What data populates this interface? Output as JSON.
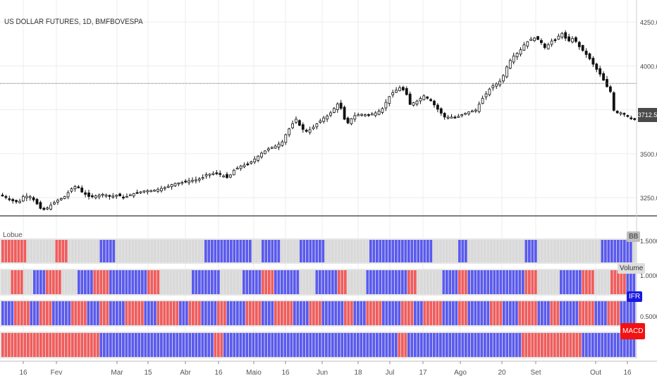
{
  "title": "US DOLLAR FUTURES, 1D, BMFBOVESPA",
  "last_price": "3712.5",
  "indicator_name": "Lobue",
  "row_labels": [
    "BB",
    "Volume",
    "IFR",
    "MACD"
  ],
  "colors": {
    "bull": "#5a5aef",
    "bear": "#f25c5c",
    "neutral": "#d9d9d9",
    "candle": "#111111",
    "grid": "#ececec",
    "axis": "#555555"
  },
  "chart_data": [
    {
      "type": "candlestick",
      "title": "US DOLLAR FUTURES, 1D, BMFBOVESPA",
      "ylim": [
        3150,
        4375
      ],
      "y_ticks": [
        "4250.0",
        "4000.0",
        "3750.0",
        "3500.0",
        "3250.0"
      ],
      "y_tick_values": [
        4250,
        4000,
        3750,
        3500,
        3250
      ],
      "reference_line": 3900,
      "last_price": 3712.5,
      "x_ticks": [
        "16",
        "Fev",
        "Mar",
        "15",
        "Abr",
        "16",
        "Maio",
        "16",
        "Jun",
        "18",
        "Jul",
        "17",
        "Ago",
        "20",
        "Set",
        "Out",
        "16"
      ],
      "close_path": [
        [
          0,
          3265
        ],
        [
          10,
          3245
        ],
        [
          20,
          3225
        ],
        [
          27,
          3230
        ],
        [
          32,
          3260
        ],
        [
          42,
          3255
        ],
        [
          50,
          3220
        ],
        [
          55,
          3190
        ],
        [
          62,
          3180
        ],
        [
          70,
          3205
        ],
        [
          78,
          3230
        ],
        [
          90,
          3255
        ],
        [
          100,
          3300
        ],
        [
          108,
          3320
        ],
        [
          115,
          3280
        ],
        [
          125,
          3255
        ],
        [
          135,
          3260
        ],
        [
          145,
          3270
        ],
        [
          155,
          3255
        ],
        [
          165,
          3265
        ],
        [
          175,
          3250
        ],
        [
          185,
          3270
        ],
        [
          195,
          3280
        ],
        [
          205,
          3290
        ],
        [
          215,
          3290
        ],
        [
          225,
          3300
        ],
        [
          235,
          3310
        ],
        [
          245,
          3330
        ],
        [
          255,
          3335
        ],
        [
          265,
          3345
        ],
        [
          275,
          3350
        ],
        [
          285,
          3360
        ],
        [
          290,
          3380
        ],
        [
          298,
          3385
        ],
        [
          305,
          3390
        ],
        [
          315,
          3375
        ],
        [
          322,
          3360
        ],
        [
          330,
          3405
        ],
        [
          340,
          3430
        ],
        [
          350,
          3440
        ],
        [
          360,
          3470
        ],
        [
          370,
          3505
        ],
        [
          380,
          3530
        ],
        [
          390,
          3545
        ],
        [
          400,
          3570
        ],
        [
          405,
          3620
        ],
        [
          412,
          3660
        ],
        [
          418,
          3700
        ],
        [
          425,
          3650
        ],
        [
          432,
          3625
        ],
        [
          440,
          3640
        ],
        [
          448,
          3670
        ],
        [
          458,
          3705
        ],
        [
          465,
          3720
        ],
        [
          475,
          3770
        ],
        [
          480,
          3800
        ],
        [
          485,
          3705
        ],
        [
          492,
          3675
        ],
        [
          500,
          3715
        ],
        [
          510,
          3725
        ],
        [
          520,
          3720
        ],
        [
          530,
          3730
        ],
        [
          540,
          3750
        ],
        [
          547,
          3800
        ],
        [
          553,
          3840
        ],
        [
          560,
          3860
        ],
        [
          567,
          3880
        ],
        [
          575,
          3840
        ],
        [
          580,
          3780
        ],
        [
          590,
          3800
        ],
        [
          600,
          3830
        ],
        [
          610,
          3800
        ],
        [
          620,
          3750
        ],
        [
          630,
          3705
        ],
        [
          637,
          3710
        ],
        [
          645,
          3705
        ],
        [
          655,
          3725
        ],
        [
          665,
          3740
        ],
        [
          675,
          3750
        ],
        [
          680,
          3800
        ],
        [
          687,
          3835
        ],
        [
          695,
          3880
        ],
        [
          702,
          3895
        ],
        [
          710,
          3920
        ],
        [
          718,
          4000
        ],
        [
          725,
          4050
        ],
        [
          735,
          4080
        ],
        [
          742,
          4120
        ],
        [
          750,
          4150
        ],
        [
          758,
          4160
        ],
        [
          765,
          4140
        ],
        [
          772,
          4100
        ],
        [
          780,
          4140
        ],
        [
          787,
          4150
        ],
        [
          795,
          4190
        ],
        [
          800,
          4160
        ],
        [
          805,
          4140
        ],
        [
          812,
          4160
        ],
        [
          820,
          4110
        ],
        [
          827,
          4080
        ],
        [
          835,
          4040
        ],
        [
          843,
          3990
        ],
        [
          852,
          3940
        ],
        [
          858,
          3890
        ],
        [
          865,
          3850
        ],
        [
          870,
          3730
        ],
        [
          878,
          3735
        ],
        [
          886,
          3720
        ],
        [
          893,
          3700
        ],
        [
          900,
          3700
        ]
      ],
      "series": [
        {
          "name": "BB",
          "segments": [
            [
              "bear",
              8
            ],
            [
              "neutral",
              9
            ],
            [
              "bear",
              4
            ],
            [
              "neutral",
              10
            ],
            [
              "bull",
              5
            ],
            [
              "neutral",
              28
            ],
            [
              "bull",
              15
            ],
            [
              "neutral",
              3
            ],
            [
              "bull",
              6
            ],
            [
              "neutral",
              6
            ],
            [
              "bull",
              8
            ],
            [
              "neutral",
              14
            ],
            [
              "bull",
              20
            ],
            [
              "neutral",
              8
            ],
            [
              "bull",
              3
            ],
            [
              "neutral",
              18
            ],
            [
              "bull",
              4
            ],
            [
              "neutral",
              20
            ],
            [
              "bull",
              10
            ],
            [
              "neutral",
              16
            ],
            [
              "bear",
              8
            ],
            [
              "neutral",
              12
            ],
            [
              "bull",
              26
            ],
            [
              "neutral",
              17
            ],
            [
              "bear",
              2
            ],
            [
              "neutral",
              3
            ],
            [
              "bear",
              3
            ],
            [
              "neutral",
              2
            ],
            [
              "bear",
              13
            ],
            [
              "neutral",
              3
            ]
          ]
        },
        {
          "name": "Volume",
          "segments": [
            [
              "neutral",
              3
            ],
            [
              "bear",
              4
            ],
            [
              "neutral",
              3
            ],
            [
              "bull",
              4
            ],
            [
              "bear",
              5
            ],
            [
              "neutral",
              5
            ],
            [
              "bull",
              5
            ],
            [
              "bear",
              5
            ],
            [
              "bull",
              12
            ],
            [
              "bear",
              4
            ],
            [
              "neutral",
              10
            ],
            [
              "bull",
              9
            ],
            [
              "neutral",
              7
            ],
            [
              "bull",
              6
            ],
            [
              "bear",
              4
            ],
            [
              "bull",
              8
            ],
            [
              "neutral",
              5
            ],
            [
              "bull",
              7
            ],
            [
              "bear",
              3
            ],
            [
              "neutral",
              6
            ],
            [
              "bull",
              13
            ],
            [
              "bear",
              3
            ],
            [
              "neutral",
              8
            ],
            [
              "bull",
              5
            ],
            [
              "bear",
              3
            ],
            [
              "bull",
              18
            ],
            [
              "bear",
              4
            ],
            [
              "neutral",
              7
            ],
            [
              "bull",
              7
            ],
            [
              "bear",
              4
            ],
            [
              "neutral",
              5
            ],
            [
              "bear",
              5
            ],
            [
              "bull",
              8
            ],
            [
              "bear",
              5
            ],
            [
              "neutral",
              6
            ],
            [
              "bull",
              10
            ],
            [
              "bear",
              5
            ],
            [
              "neutral",
              8
            ],
            [
              "bull",
              9
            ],
            [
              "neutral",
              6
            ],
            [
              "bull",
              5
            ],
            [
              "neutral",
              4
            ],
            [
              "bull",
              4
            ],
            [
              "neutral",
              5
            ],
            [
              "bull",
              5
            ],
            [
              "bear",
              4
            ],
            [
              "bull",
              10
            ],
            [
              "neutral",
              4
            ],
            [
              "bull",
              4
            ],
            [
              "neutral",
              6
            ],
            [
              "bull",
              5
            ],
            [
              "bear",
              6
            ],
            [
              "neutral",
              4
            ],
            [
              "bear",
              6
            ]
          ]
        },
        {
          "name": "IFR",
          "segments": [
            [
              "bull",
              4
            ],
            [
              "bear",
              5
            ],
            [
              "bull",
              3
            ],
            [
              "bear",
              4
            ],
            [
              "bull",
              6
            ],
            [
              "bear",
              5
            ],
            [
              "bull",
              4
            ],
            [
              "bear",
              3
            ],
            [
              "bull",
              5
            ],
            [
              "bear",
              6
            ],
            [
              "bull",
              4
            ],
            [
              "bear",
              7
            ],
            [
              "bull",
              3
            ],
            [
              "bear",
              4
            ],
            [
              "bull",
              5
            ],
            [
              "bear",
              3
            ],
            [
              "bull",
              6
            ],
            [
              "bear",
              5
            ],
            [
              "bull",
              4
            ],
            [
              "bear",
              6
            ],
            [
              "bull",
              5
            ],
            [
              "bear",
              4
            ],
            [
              "bull",
              7
            ],
            [
              "bear",
              3
            ],
            [
              "bull",
              4
            ],
            [
              "bear",
              5
            ],
            [
              "bull",
              6
            ],
            [
              "bear",
              4
            ],
            [
              "bull",
              3
            ],
            [
              "bear",
              6
            ],
            [
              "bull",
              5
            ],
            [
              "bear",
              3
            ],
            [
              "bull",
              7
            ],
            [
              "bear",
              4
            ],
            [
              "bull",
              5
            ],
            [
              "bear",
              6
            ],
            [
              "bull",
              4
            ],
            [
              "bear",
              3
            ],
            [
              "bull",
              6
            ],
            [
              "bear",
              5
            ],
            [
              "bull",
              4
            ],
            [
              "bear",
              4
            ],
            [
              "bull",
              6
            ],
            [
              "bear",
              5
            ],
            [
              "bull",
              3
            ],
            [
              "bear",
              7
            ],
            [
              "bull",
              4
            ],
            [
              "bear",
              5
            ],
            [
              "bull",
              6
            ],
            [
              "bear",
              4
            ],
            [
              "bull",
              5
            ],
            [
              "bear",
              6
            ],
            [
              "bull",
              4
            ],
            [
              "bear",
              8
            ]
          ]
        },
        {
          "name": "MACD",
          "segments": [
            [
              "bear",
              31
            ],
            [
              "bull",
              36
            ],
            [
              "bear",
              3
            ],
            [
              "bull",
              55
            ],
            [
              "bear",
              3
            ],
            [
              "bull",
              36
            ],
            [
              "bear",
              19
            ],
            [
              "bull",
              22
            ],
            [
              "bear",
              24
            ],
            [
              "bull",
              15
            ],
            [
              "bear",
              12
            ],
            [
              "bull",
              37
            ],
            [
              "bear",
              40
            ]
          ]
        }
      ],
      "indicator_ylim": [
        0,
        1.6
      ],
      "indicator_y_ticks": [
        "1.5000",
        "1.0000",
        "0.5000"
      ],
      "indicator_y_tick_values": [
        1.5,
        1.0,
        0.5
      ],
      "grid": true,
      "legend": "right-tags"
    }
  ]
}
